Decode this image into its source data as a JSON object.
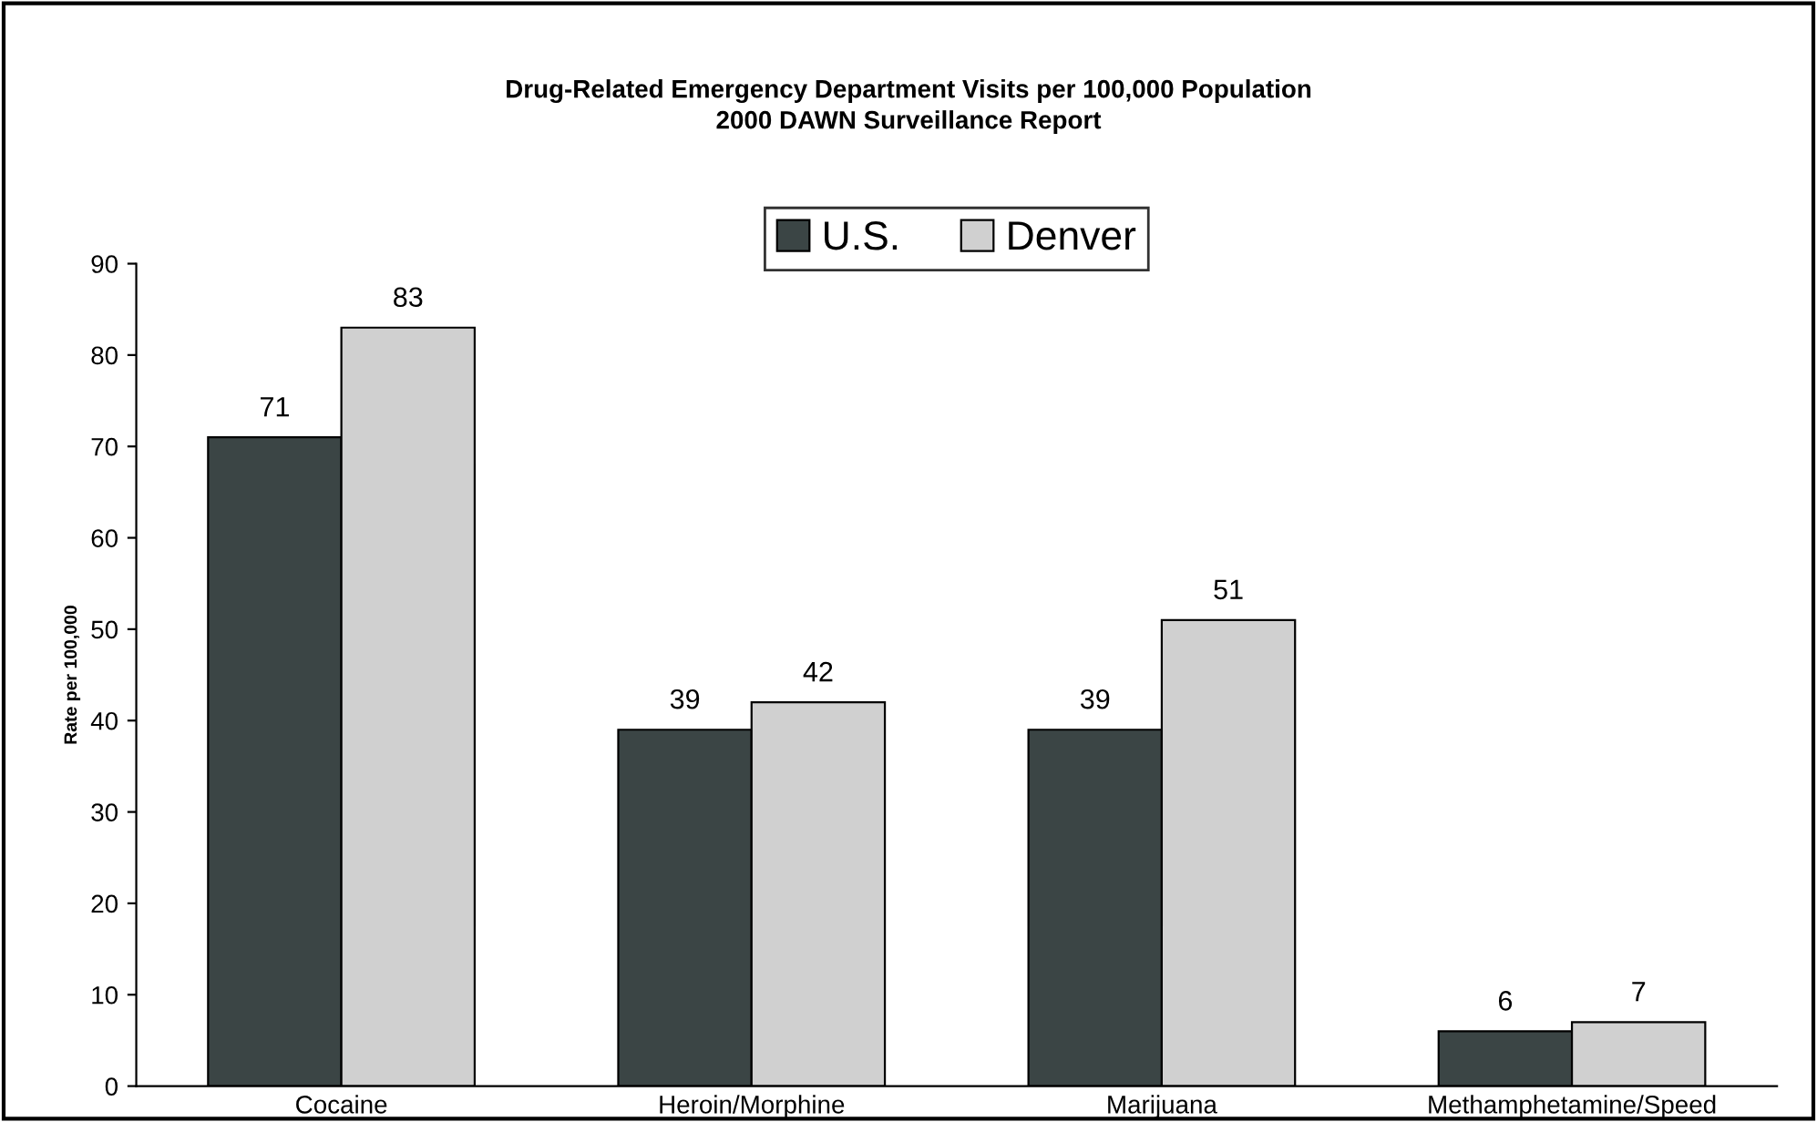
{
  "chart_data": {
    "type": "bar",
    "title": "Drug-Related Emergency Department Visits per 100,000 Population\n2000 DAWN Surveillance Report",
    "ylabel": "Rate per 100,000",
    "categories": [
      "Cocaine",
      "Heroin/Morphine",
      "Marijuana",
      "Methamphetamine/Speed"
    ],
    "series": [
      {
        "name": "U.S.",
        "color": "#3b4545",
        "values": [
          71,
          39,
          39,
          6
        ]
      },
      {
        "name": "Denver",
        "color": "#d0d0d0",
        "values": [
          83,
          42,
          51,
          7
        ]
      }
    ],
    "ylim": [
      0,
      90
    ],
    "yticks": [
      0,
      10,
      20,
      30,
      40,
      50,
      60,
      70,
      80,
      90
    ],
    "grid": false,
    "legend": "top",
    "data_labels": true
  }
}
